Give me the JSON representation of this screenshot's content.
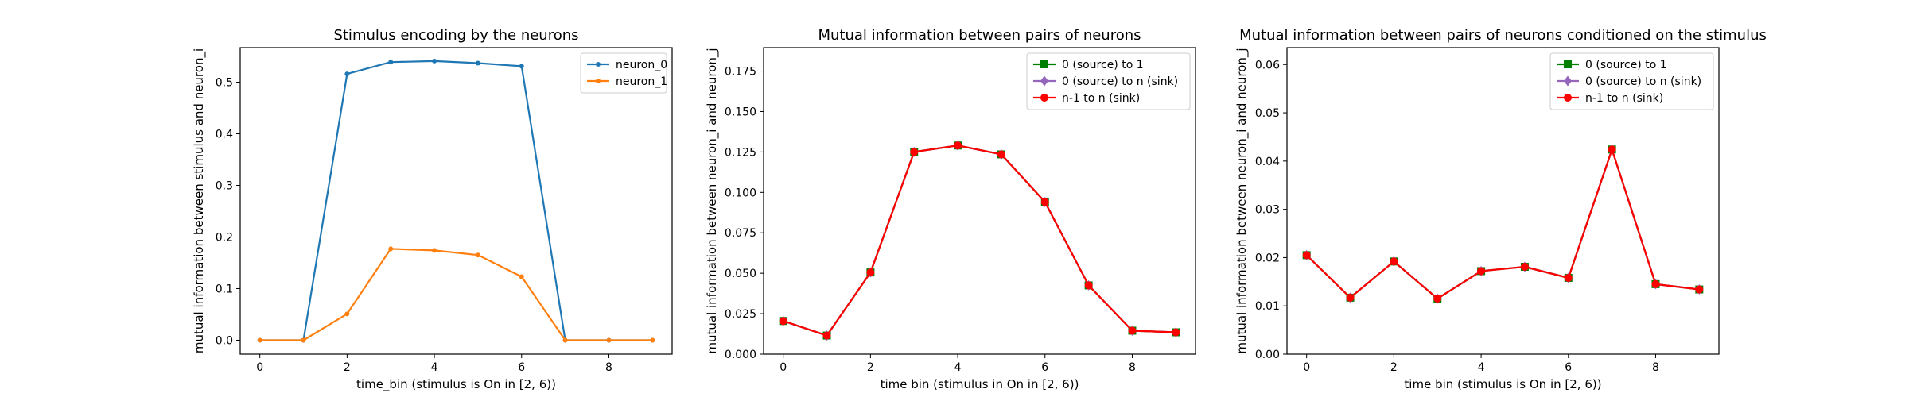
{
  "figure": {
    "background": "#ffffff"
  },
  "chart_data": [
    {
      "type": "line",
      "title": "Stimulus encoding by the neurons",
      "xlabel": "time_bin (stimulus is On in [2, 6))",
      "ylabel": "mutual information between stimulus and neuron_i",
      "xlim": [
        -0.45,
        9.45
      ],
      "ylim": [
        -0.027,
        0.567
      ],
      "xticks": [
        0,
        2,
        4,
        6,
        8
      ],
      "xtick_labels": [
        "0",
        "2",
        "4",
        "6",
        "8"
      ],
      "yticks": [
        0.0,
        0.1,
        0.2,
        0.3,
        0.4,
        0.5
      ],
      "ytick_labels": [
        "0.0",
        "0.1",
        "0.2",
        "0.3",
        "0.4",
        "0.5"
      ],
      "grid": false,
      "legend_position": "top-right",
      "x": [
        0,
        1,
        2,
        3,
        4,
        5,
        6,
        7,
        8,
        9
      ],
      "series": [
        {
          "name": "neuron_0",
          "color": "#1f77b4",
          "marker": "dot",
          "values": [
            0.0,
            0.0,
            0.516,
            0.539,
            0.541,
            0.537,
            0.531,
            0.0,
            0.0,
            0.0
          ]
        },
        {
          "name": "neuron_1",
          "color": "#ff7f0e",
          "marker": "dot",
          "values": [
            0.0,
            0.0,
            0.051,
            0.177,
            0.174,
            0.165,
            0.123,
            0.0,
            0.0,
            0.0
          ]
        }
      ]
    },
    {
      "type": "line",
      "title": "Mutual information between pairs of neurons",
      "xlabel": "time bin (stimulus in On in [2, 6))",
      "ylabel": "mutual information between neuron_i and neuron_j",
      "xlim": [
        -0.45,
        9.45
      ],
      "ylim": [
        0.0,
        0.1895
      ],
      "xticks": [
        0,
        2,
        4,
        6,
        8
      ],
      "xtick_labels": [
        "0",
        "2",
        "4",
        "6",
        "8"
      ],
      "yticks": [
        0.0,
        0.025,
        0.05,
        0.075,
        0.1,
        0.125,
        0.15,
        0.175
      ],
      "ytick_labels": [
        "0.000",
        "0.025",
        "0.050",
        "0.075",
        "0.100",
        "0.125",
        "0.150",
        "0.175"
      ],
      "grid": false,
      "legend_position": "top-right",
      "x": [
        0,
        1,
        2,
        3,
        4,
        5,
        6,
        7,
        8,
        9
      ],
      "series": [
        {
          "name": "0 (source) to 1",
          "color": "#008000",
          "marker": "square",
          "values": [
            0.0205,
            0.0115,
            0.0505,
            0.125,
            0.129,
            0.1235,
            0.094,
            0.0425,
            0.0145,
            0.0135
          ]
        },
        {
          "name": "0 (source) to n (sink)",
          "color": "#9467bd",
          "marker": "diamond",
          "values": [
            0.0205,
            0.0115,
            0.0505,
            0.125,
            0.129,
            0.1235,
            0.094,
            0.0425,
            0.0145,
            0.0135
          ]
        },
        {
          "name": "n-1 to n (sink)",
          "color": "#ff0000",
          "marker": "dot",
          "values": [
            0.0205,
            0.0115,
            0.0505,
            0.125,
            0.129,
            0.1235,
            0.094,
            0.0425,
            0.0145,
            0.0135
          ]
        }
      ]
    },
    {
      "type": "line",
      "title": "Mutual information between pairs of neurons conditioned on the stimulus",
      "xlabel": "time bin (stimulus is On in [2, 6))",
      "ylabel": "mutual information between neuron_i and neuron_j",
      "xlim": [
        -0.45,
        9.45
      ],
      "ylim": [
        0.0,
        0.0635
      ],
      "xticks": [
        0,
        2,
        4,
        6,
        8
      ],
      "xtick_labels": [
        "0",
        "2",
        "4",
        "6",
        "8"
      ],
      "yticks": [
        0.0,
        0.01,
        0.02,
        0.03,
        0.04,
        0.05,
        0.06
      ],
      "ytick_labels": [
        "0.00",
        "0.01",
        "0.02",
        "0.03",
        "0.04",
        "0.05",
        "0.06"
      ],
      "grid": false,
      "legend_position": "top-right",
      "x": [
        0,
        1,
        2,
        3,
        4,
        5,
        6,
        7,
        8,
        9
      ],
      "series": [
        {
          "name": "0 (source) to 1",
          "color": "#008000",
          "marker": "square",
          "values": [
            0.0205,
            0.0117,
            0.0192,
            0.0115,
            0.0172,
            0.0181,
            0.0158,
            0.0424,
            0.0145,
            0.0134
          ]
        },
        {
          "name": "0 (source) to n (sink)",
          "color": "#9467bd",
          "marker": "diamond",
          "values": [
            0.0205,
            0.0117,
            0.0192,
            0.0115,
            0.0172,
            0.0181,
            0.0158,
            0.0424,
            0.0145,
            0.0134
          ]
        },
        {
          "name": "n-1 to n (sink)",
          "color": "#ff0000",
          "marker": "dot",
          "values": [
            0.0205,
            0.0117,
            0.0192,
            0.0115,
            0.0172,
            0.0181,
            0.0158,
            0.0424,
            0.0145,
            0.0134
          ]
        }
      ]
    }
  ]
}
